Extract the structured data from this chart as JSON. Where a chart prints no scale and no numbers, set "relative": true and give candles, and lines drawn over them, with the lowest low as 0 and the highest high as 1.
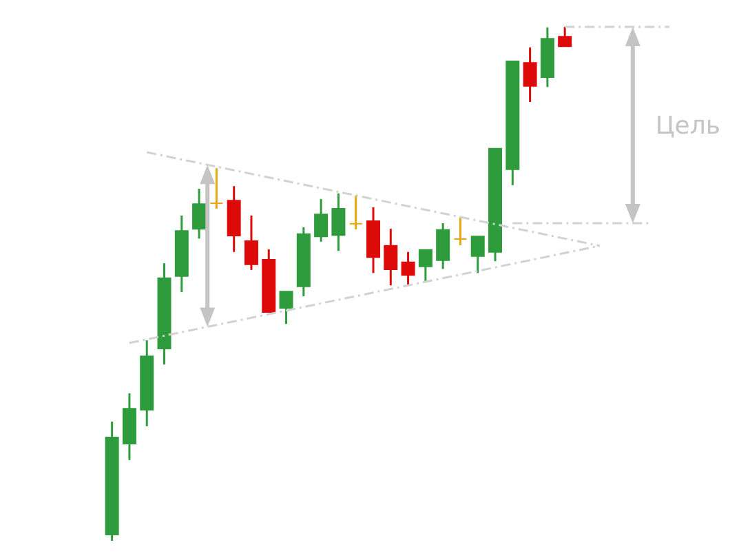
{
  "chart_data": {
    "type": "candlestick",
    "relative": true,
    "categories": [
      null,
      null,
      null,
      null,
      null,
      null,
      null,
      null,
      null,
      null,
      null,
      null,
      null,
      null,
      null,
      null,
      null,
      null,
      null,
      null,
      null,
      null,
      null,
      null,
      null,
      null,
      null,
      null,
      null,
      null,
      null,
      null,
      null
    ],
    "ohlc": [
      [
        0.012,
        0.232,
        0,
        0.201
      ],
      [
        0.189,
        0.287,
        0.157,
        0.257
      ],
      [
        0.255,
        0.39,
        0.223,
        0.359
      ],
      [
        0.374,
        0.54,
        0.343,
        0.511
      ],
      [
        0.515,
        0.633,
        0.484,
        0.603
      ],
      [
        0.607,
        0.685,
        0.588,
        0.655
      ],
      [
        0.657,
        0.725,
        0.646,
        0.657
      ],
      [
        0.662,
        0.69,
        0.562,
        0.594
      ],
      [
        0.583,
        0.633,
        0.527,
        0.538
      ],
      [
        0.547,
        0.567,
        0.445,
        0.445
      ],
      [
        0.453,
        0.485,
        0.422,
        0.485
      ],
      [
        0.495,
        0.61,
        0.476,
        0.597
      ],
      [
        0.592,
        0.665,
        0.582,
        0.635
      ],
      [
        0.595,
        0.676,
        0.564,
        0.646
      ],
      [
        0.617,
        0.672,
        0.606,
        0.617
      ],
      [
        0.622,
        0.649,
        0.521,
        0.552
      ],
      [
        0.574,
        0.607,
        0.497,
        0.528
      ],
      [
        0.542,
        0.562,
        0.497,
        0.517
      ],
      [
        0.534,
        0.566,
        0.503,
        0.566
      ],
      [
        0.546,
        0.618,
        0.529,
        0.605
      ],
      [
        0.587,
        0.63,
        0.575,
        0.587
      ],
      [
        0.554,
        0.592,
        0.521,
        0.592
      ],
      [
        0.562,
        0.763,
        0.544,
        0.763
      ],
      [
        0.723,
        0.933,
        0.692,
        0.933
      ],
      [
        0.93,
        0.96,
        0.854,
        0.885
      ],
      [
        0.902,
        0.999,
        0.883,
        0.977
      ],
      [
        0.981,
        1,
        0.962,
        0.962
      ],
      null,
      null,
      null,
      null,
      null,
      null
    ],
    "colors": [
      "#2e9b3c",
      "#2e9b3c",
      "#2e9b3c",
      "#2e9b3c",
      "#2e9b3c",
      "#2e9b3c",
      "#e3a90f",
      "#dd0a0a",
      "#dd0a0a",
      "#dd0a0a",
      "#2e9b3c",
      "#2e9b3c",
      "#2e9b3c",
      "#2e9b3c",
      "#e3a90f",
      "#dd0a0a",
      "#dd0a0a",
      "#dd0a0a",
      "#2e9b3c",
      "#2e9b3c",
      "#e3a90f",
      "#2e9b3c",
      "#2e9b3c",
      "#2e9b3c",
      "#dd0a0a",
      "#2e9b3c",
      "#dd0a0a",
      null,
      null,
      null,
      null,
      null,
      null
    ],
    "series": [
      {
        "type": "line",
        "color": "#d2d2d2",
        "line_style": "dashed",
        "values": [
          null,
          null,
          0.756,
          0.749,
          0.742,
          0.735,
          0.728,
          0.721,
          0.714,
          0.707,
          0.7,
          0.693,
          0.686,
          0.679,
          0.672,
          0.665,
          0.658,
          0.651,
          0.644,
          0.637,
          0.63,
          0.623,
          0.616,
          0.609,
          0.602,
          0.595,
          0.588,
          0.581,
          0.574,
          null,
          null,
          null,
          null
        ]
      },
      {
        "type": "line",
        "color": "#d2d2d2",
        "line_style": "dashed",
        "values": [
          null,
          0.385,
          0.392,
          0.399,
          0.406,
          0.413,
          0.42,
          0.427,
          0.434,
          0.441,
          0.448,
          0.455,
          0.462,
          0.469,
          0.476,
          0.483,
          0.49,
          0.497,
          0.504,
          0.511,
          0.518,
          0.525,
          0.532,
          0.539,
          0.546,
          0.553,
          0.56,
          0.567,
          0.574,
          null,
          null,
          null,
          null
        ]
      },
      {
        "type": "line",
        "color": "#d2d2d2",
        "line_style": "dashed",
        "values": [
          null,
          null,
          null,
          null,
          null,
          null,
          null,
          null,
          null,
          null,
          null,
          null,
          null,
          null,
          null,
          null,
          null,
          null,
          null,
          null,
          null,
          null,
          null,
          null,
          null,
          null,
          1,
          1,
          1,
          1,
          1,
          1,
          1
        ]
      },
      {
        "type": "line",
        "color": "#d2d2d2",
        "line_style": "dashed",
        "values": [
          null,
          null,
          null,
          null,
          null,
          null,
          null,
          null,
          null,
          null,
          null,
          null,
          null,
          null,
          null,
          null,
          null,
          null,
          null,
          null,
          null,
          null,
          null,
          0.618,
          0.618,
          0.618,
          0.618,
          0.618,
          0.618,
          0.618,
          0.618,
          0.618,
          null
        ]
      }
    ],
    "annotations": [
      "Цель"
    ]
  }
}
